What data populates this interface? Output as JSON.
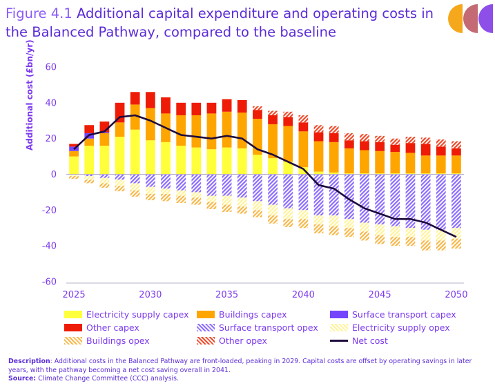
{
  "title": {
    "figure_label": "Figure 4.1",
    "text": "Additional capital expenditure and operating costs in the Balanced Pathway, compared to the baseline"
  },
  "description": {
    "label": "Description",
    "text": ": Additional costs in the Balanced Pathway are front-loaded, peaking in 2029. Capital costs are offset by operating savings in later years, with the pathway becoming a net cost saving overall in 2041.",
    "source_label": "Source:",
    "source_text": " Climate Change Committee (CCC) analysis."
  },
  "colors": {
    "electricity_capex": "#ffff3b",
    "buildings_capex": "#ffa500",
    "surface_capex": "#7444ff",
    "other_capex": "#ee1c06",
    "surface_opex": "#8c6cff",
    "electricity_opex": "#fff39a",
    "buildings_opex": "#f7b84a",
    "other_opex": "#ee4a2a",
    "net": "#1e0b3d",
    "axis_text": "#7c3aed",
    "logo": [
      "#f5a81c",
      "#c46a74",
      "#8e4ee8"
    ]
  },
  "chart_data": {
    "type": "bar",
    "ylabel": "Additional cost (£bn/yr)",
    "ylim": [
      -60,
      60
    ],
    "yticks": [
      60,
      40,
      20,
      0,
      -20,
      -40,
      -60
    ],
    "xticks": [
      2025,
      2030,
      2035,
      2040,
      2045,
      2050
    ],
    "grid": false,
    "legend_position": "bottom",
    "x": [
      2025,
      2026,
      2027,
      2028,
      2029,
      2030,
      2031,
      2032,
      2033,
      2034,
      2035,
      2036,
      2037,
      2038,
      2039,
      2040,
      2041,
      2042,
      2043,
      2044,
      2045,
      2046,
      2047,
      2048,
      2049,
      2050
    ],
    "series": [
      {
        "name": "Electricity supply capex",
        "color_key": "electricity_capex",
        "values": [
          10,
          16,
          16,
          21,
          25,
          19,
          18,
          16,
          15,
          14,
          15,
          14.5,
          11,
          9,
          7,
          4,
          1.5,
          1,
          0.5,
          0.5,
          0.5,
          0.5,
          0.5,
          0.5,
          0.5,
          0.5
        ]
      },
      {
        "name": "Buildings capex",
        "color_key": "buildings_capex",
        "values": [
          3,
          4,
          7,
          8,
          14,
          18,
          16,
          17,
          18,
          20,
          20,
          20,
          20,
          19,
          20,
          20,
          17,
          17,
          14,
          13,
          12.5,
          12,
          11.5,
          10,
          10,
          10
        ]
      },
      {
        "name": "Surface transport capex",
        "color_key": "surface_capex",
        "values": [
          2.5,
          3,
          0.5,
          0,
          0,
          0,
          0,
          0,
          0,
          0,
          0,
          0,
          0,
          0,
          0,
          0,
          0,
          0,
          0,
          0,
          0,
          0,
          0,
          0,
          0,
          0
        ]
      },
      {
        "name": "Other capex",
        "color_key": "other_capex",
        "values": [
          1.5,
          4.5,
          6,
          11,
          7,
          9,
          9,
          7,
          7,
          6,
          7,
          7,
          5,
          5,
          5,
          5,
          5,
          5,
          4.5,
          5,
          5,
          4,
          5.5,
          6.5,
          5,
          4
        ]
      },
      {
        "name": "Other opex",
        "color_key": "other_opex",
        "values": [
          0,
          0,
          0,
          0,
          0,
          0,
          0,
          0,
          0,
          0,
          0,
          0,
          2,
          2.5,
          3,
          4,
          4,
          4,
          4,
          4,
          3.5,
          3.5,
          3.5,
          3.5,
          4,
          4
        ]
      },
      {
        "name": "Surface transport opex",
        "color_key": "surface_opex",
        "values": [
          0,
          -1,
          -2,
          -3,
          -5,
          -7,
          -8,
          -9,
          -10,
          -12,
          -12,
          -13,
          -15,
          -17,
          -19,
          -20,
          -23,
          -23,
          -25,
          -27,
          -28,
          -29,
          -30,
          -31,
          -31,
          -30
        ]
      },
      {
        "name": "Electricity supply opex",
        "color_key": "electricity_opex",
        "values": [
          -1,
          -2,
          -3,
          -3.5,
          -4,
          -4,
          -3,
          -3,
          -3,
          -3.5,
          -5,
          -5,
          -5,
          -6,
          -6,
          -5,
          -5,
          -6,
          -5,
          -5,
          -6,
          -6,
          -5,
          -6,
          -6,
          -6
        ]
      },
      {
        "name": "Buildings opex",
        "color_key": "buildings_opex",
        "values": [
          -1.5,
          -2,
          -2.5,
          -3,
          -3.5,
          -3.5,
          -4,
          -4,
          -4,
          -4,
          -4,
          -4,
          -4,
          -4.5,
          -4.5,
          -5,
          -5,
          -5,
          -5,
          -5,
          -5,
          -5,
          -5,
          -5.5,
          -5.5,
          -5.5
        ]
      },
      {
        "name": "Net cost",
        "color_key": "net",
        "kind": "line",
        "values": [
          14,
          22,
          24,
          32,
          33,
          30,
          26,
          22,
          21,
          20,
          21.5,
          20,
          14,
          11,
          7,
          3,
          -6,
          -8,
          -14,
          -19,
          -22,
          -25,
          -25,
          -27,
          -31,
          -35
        ]
      }
    ]
  },
  "legend": [
    {
      "label": "Electricity supply capex",
      "color_key": "electricity_capex",
      "style": "solid"
    },
    {
      "label": "Buildings capex",
      "color_key": "buildings_capex",
      "style": "solid"
    },
    {
      "label": "Surface transport capex",
      "color_key": "surface_capex",
      "style": "solid"
    },
    {
      "label": "Other capex",
      "color_key": "other_capex",
      "style": "solid"
    },
    {
      "label": "Surface transport opex",
      "color_key": "surface_opex",
      "style": "hatched"
    },
    {
      "label": "Electricity supply opex",
      "color_key": "electricity_opex",
      "style": "hatched"
    },
    {
      "label": "Buildings opex",
      "color_key": "buildings_opex",
      "style": "hatched"
    },
    {
      "label": "Other opex",
      "color_key": "other_opex",
      "style": "hatched"
    },
    {
      "label": "Net cost",
      "color_key": "net",
      "style": "line"
    }
  ]
}
